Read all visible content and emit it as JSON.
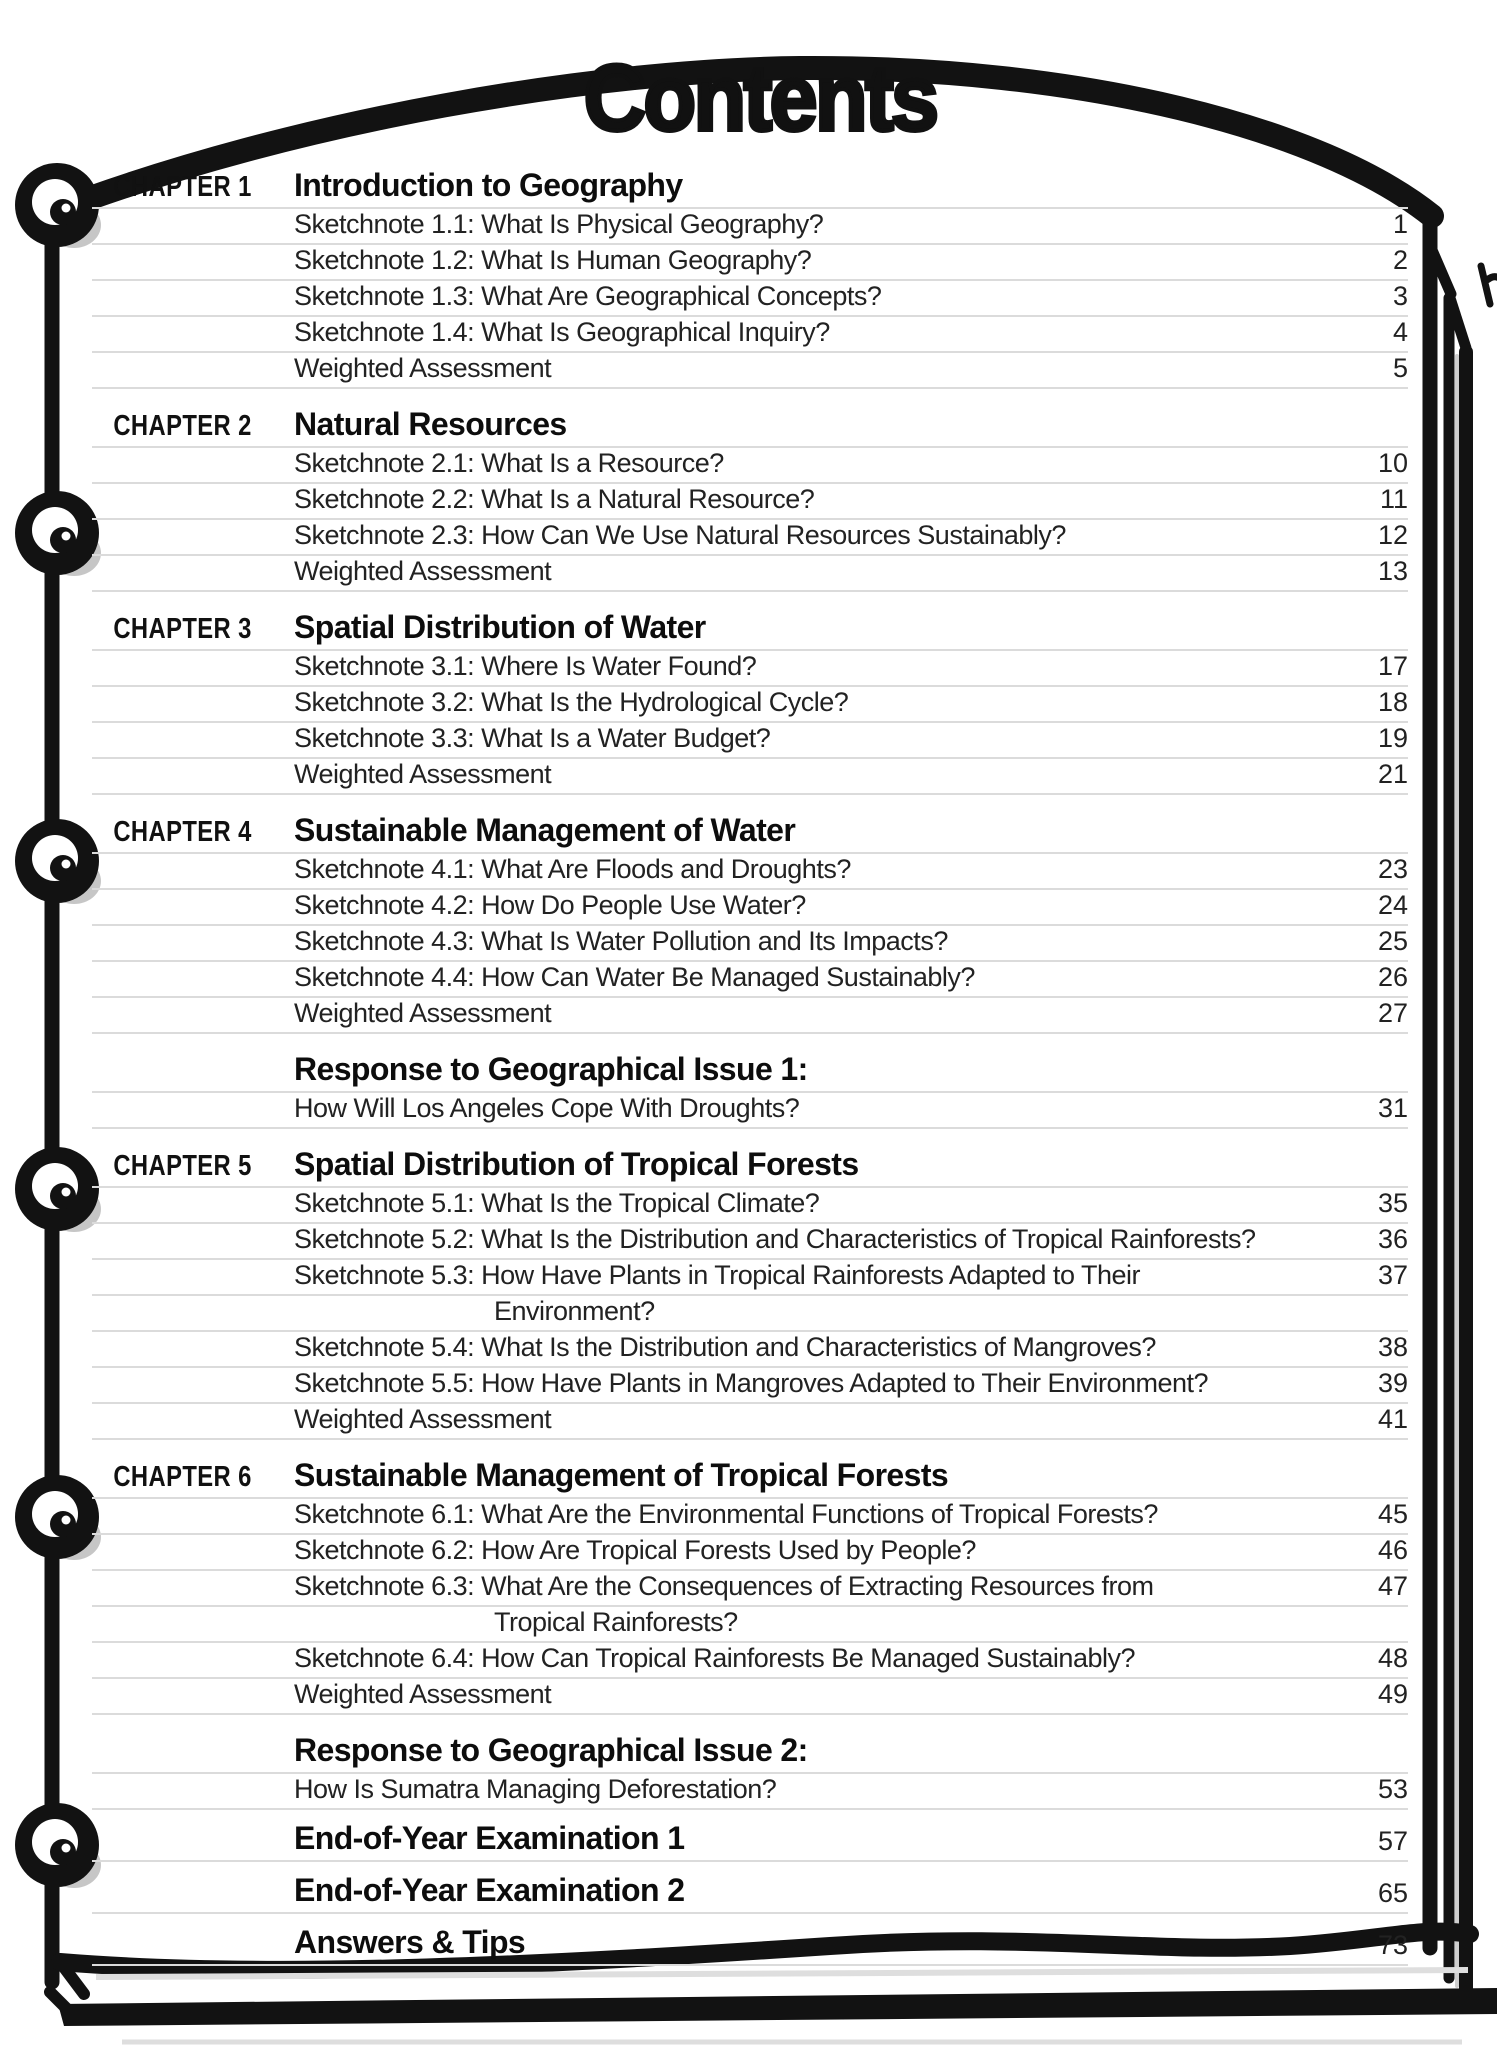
{
  "page_title": "Contents",
  "colors": {
    "ink": "#121212",
    "rule_line": "#dbdbdb",
    "ring_shadow": "#c6c6c6",
    "paper": "#ffffff"
  },
  "decorations": {
    "left_icons": [
      "binder-ring-icon",
      "binder-ring-icon",
      "binder-ring-icon",
      "binder-ring-icon",
      "binder-ring-icon",
      "binder-ring-icon"
    ]
  },
  "sections": [
    {
      "type": "chapter",
      "label": "CHAPTER 1",
      "title": "Introduction to Geography",
      "rows": [
        {
          "text": "Sketchnote 1.1: What Is Physical Geography?",
          "page": "1"
        },
        {
          "text": "Sketchnote 1.2: What Is Human Geography?",
          "page": "2"
        },
        {
          "text": "Sketchnote 1.3: What Are Geographical Concepts?",
          "page": "3"
        },
        {
          "text": "Sketchnote 1.4: What Is Geographical Inquiry?",
          "page": "4"
        },
        {
          "text": "Weighted Assessment",
          "page": "5"
        }
      ]
    },
    {
      "type": "chapter",
      "label": "CHAPTER 2",
      "title": "Natural Resources",
      "rows": [
        {
          "text": "Sketchnote 2.1: What Is a Resource?",
          "page": "10"
        },
        {
          "text": "Sketchnote 2.2: What Is a Natural Resource?",
          "page": "11"
        },
        {
          "text": "Sketchnote 2.3: How Can We Use Natural Resources Sustainably?",
          "page": "12"
        },
        {
          "text": "Weighted Assessment",
          "page": "13"
        }
      ]
    },
    {
      "type": "chapter",
      "label": "CHAPTER 3",
      "title": "Spatial Distribution of Water",
      "rows": [
        {
          "text": "Sketchnote 3.1: Where Is Water Found?",
          "page": "17"
        },
        {
          "text": "Sketchnote 3.2: What Is the Hydrological Cycle?",
          "page": "18"
        },
        {
          "text": "Sketchnote 3.3: What Is a Water Budget?",
          "page": "19"
        },
        {
          "text": "Weighted Assessment",
          "page": "21"
        }
      ]
    },
    {
      "type": "chapter",
      "label": "CHAPTER 4",
      "title": "Sustainable Management of Water",
      "rows": [
        {
          "text": "Sketchnote 4.1: What Are Floods and Droughts?",
          "page": "23"
        },
        {
          "text": "Sketchnote 4.2: How Do People Use Water?",
          "page": "24"
        },
        {
          "text": "Sketchnote 4.3: What Is Water Pollution and Its Impacts?",
          "page": "25"
        },
        {
          "text": "Sketchnote 4.4: How Can Water Be Managed Sustainably?",
          "page": "26"
        },
        {
          "text": "Weighted Assessment",
          "page": "27"
        }
      ]
    },
    {
      "type": "issue",
      "label": "",
      "title": "Response to Geographical Issue 1:",
      "rows": [
        {
          "text": "How Will Los Angeles Cope With Droughts?",
          "page": "31"
        }
      ]
    },
    {
      "type": "chapter",
      "label": "CHAPTER 5",
      "title": "Spatial Distribution of Tropical Forests",
      "rows": [
        {
          "text": "Sketchnote 5.1: What Is the Tropical Climate?",
          "page": "35"
        },
        {
          "text": "Sketchnote 5.2: What Is the Distribution and Characteristics of Tropical Rainforests?",
          "page": "36"
        },
        {
          "text": "Sketchnote 5.3: How Have Plants in Tropical Rainforests Adapted to Their",
          "page": "37"
        },
        {
          "text": "Environment?",
          "page": "",
          "indent": true
        },
        {
          "text": "Sketchnote 5.4: What Is the Distribution and Characteristics of Mangroves?",
          "page": "38"
        },
        {
          "text": "Sketchnote 5.5: How Have Plants in Mangroves Adapted to Their Environment?",
          "page": "39"
        },
        {
          "text": "Weighted Assessment",
          "page": "41"
        }
      ]
    },
    {
      "type": "chapter",
      "label": "CHAPTER 6",
      "title": "Sustainable Management of Tropical Forests",
      "rows": [
        {
          "text": "Sketchnote 6.1: What Are the Environmental Functions of Tropical Forests?",
          "page": "45"
        },
        {
          "text": "Sketchnote 6.2: How Are Tropical Forests Used by People?",
          "page": "46"
        },
        {
          "text": "Sketchnote 6.3: What Are the Consequences of Extracting Resources from",
          "page": "47"
        },
        {
          "text": "Tropical Rainforests?",
          "page": "",
          "indent": true
        },
        {
          "text": "Sketchnote 6.4: How Can Tropical Rainforests Be Managed Sustainably?",
          "page": "48"
        },
        {
          "text": "Weighted Assessment",
          "page": "49"
        }
      ]
    },
    {
      "type": "issue",
      "label": "",
      "title": "Response to Geographical Issue 2:",
      "rows": [
        {
          "text": "How Is Sumatra Managing Deforestation?",
          "page": "53"
        }
      ]
    },
    {
      "type": "backmatter",
      "title": "End-of-Year Examination 1",
      "page": "57"
    },
    {
      "type": "backmatter",
      "title": "End-of-Year Examination 2",
      "page": "65"
    },
    {
      "type": "backmatter",
      "title": "Answers & Tips",
      "page": "73"
    }
  ]
}
